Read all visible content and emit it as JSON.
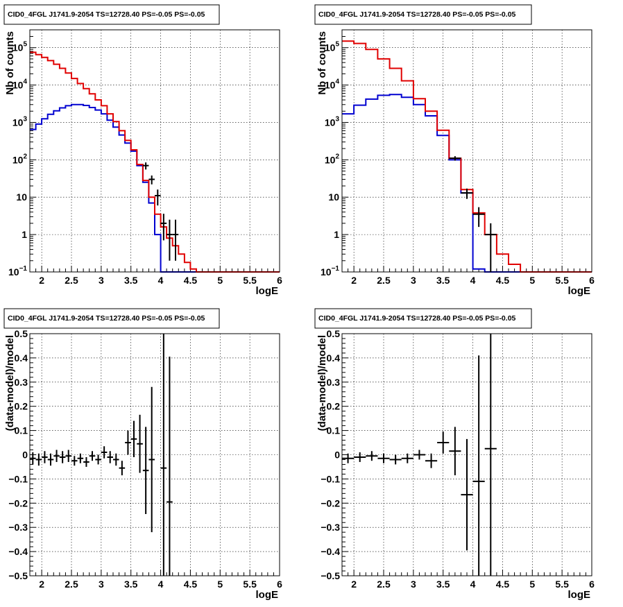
{
  "panel_title": "CID0_4FGL J1741.9-2054 TS=12728.40 PS=-0.05 PS=-0.05",
  "colors": {
    "data": "#000000",
    "model_total": "#e00000",
    "model_source": "#0000d0"
  },
  "chart_data": [
    {
      "type": "line",
      "title": "CID0_4FGL J1741.9-2054 TS=12728.40 PS=-0.05 PS=-0.05",
      "xlabel": "logE",
      "ylabel": "Nb of counts",
      "xlim": [
        1.8,
        6.0
      ],
      "ylim": [
        0.1,
        300000
      ],
      "yscale": "log",
      "grid": true,
      "x_ticks": [
        "2",
        "2.5",
        "3",
        "3.5",
        "4",
        "4.5",
        "5",
        "5.5",
        "6"
      ],
      "y_ticks": [
        {
          "value": 0.1,
          "mantissa": "10",
          "exp": "−1"
        },
        {
          "value": 1,
          "mantissa": "1",
          "exp": ""
        },
        {
          "value": 10,
          "mantissa": "10",
          "exp": ""
        },
        {
          "value": 100,
          "mantissa": "10",
          "exp": "2"
        },
        {
          "value": 1000,
          "mantissa": "10",
          "exp": "3"
        },
        {
          "value": 10000,
          "mantissa": "10",
          "exp": "4"
        },
        {
          "value": 100000,
          "mantissa": "10",
          "exp": "5"
        }
      ],
      "bin_edges": [
        1.8,
        1.9,
        2.0,
        2.1,
        2.2,
        2.3,
        2.4,
        2.5,
        2.6,
        2.7,
        2.8,
        2.9,
        3.0,
        3.1,
        3.2,
        3.3,
        3.4,
        3.5,
        3.6,
        3.7,
        3.8,
        3.9,
        4.0,
        4.1,
        4.2,
        4.3,
        4.4,
        4.5,
        4.6,
        4.7,
        4.8,
        4.9,
        5.0,
        5.1,
        5.2,
        5.3,
        5.4,
        5.5,
        5.6,
        5.7,
        5.8,
        5.9,
        6.0
      ],
      "series": [
        {
          "role": "model_total",
          "values": [
            75000,
            65000,
            55000,
            45000,
            36000,
            28000,
            21000,
            15000,
            11000,
            8000,
            5800,
            4000,
            2800,
            1700,
            1050,
            600,
            330,
            185,
            75,
            28,
            10,
            3.5,
            1.6,
            0.8,
            0.5,
            0.3,
            0.18,
            0.12,
            0.1,
            0.1,
            0.1,
            0.1,
            0.1,
            0.1,
            0.1,
            0.1,
            0.1,
            0.1,
            0.1,
            0.1,
            0.1,
            0.1
          ]
        },
        {
          "role": "model_source",
          "values": [
            650,
            900,
            1250,
            1650,
            2050,
            2450,
            2800,
            3000,
            3000,
            2850,
            2500,
            2150,
            1700,
            1150,
            750,
            460,
            280,
            170,
            70,
            25,
            7,
            1,
            0.1,
            0.1,
            0.1,
            0.1,
            0.1,
            0.1,
            0.1,
            0.1,
            0.1,
            0.1,
            0.1,
            0.1,
            0.1,
            0.1,
            0.1,
            0.1,
            0.1,
            0.1,
            0.1,
            0.1
          ]
        }
      ],
      "data_points": [
        {
          "x": 3.75,
          "y": 70,
          "lo": 55,
          "hi": 85
        },
        {
          "x": 3.85,
          "y": 30,
          "lo": 22,
          "hi": 38
        },
        {
          "x": 3.95,
          "y": 11,
          "lo": 6,
          "hi": 16
        },
        {
          "x": 4.05,
          "y": 2,
          "lo": 0.7,
          "hi": 3.6
        },
        {
          "x": 4.15,
          "y": 1,
          "lo": 0.2,
          "hi": 2.5
        },
        {
          "x": 4.25,
          "y": 1,
          "lo": 0.2,
          "hi": 2.5
        }
      ]
    },
    {
      "type": "line",
      "title": "CID0_4FGL J1741.9-2054 TS=12728.40 PS=-0.05 PS=-0.05",
      "xlabel": "logE",
      "ylabel": "Nb of counts",
      "xlim": [
        1.8,
        6.0
      ],
      "ylim": [
        0.1,
        300000
      ],
      "yscale": "log",
      "grid": true,
      "x_ticks": [
        "2",
        "2.5",
        "3",
        "3.5",
        "4",
        "4.5",
        "5",
        "5.5",
        "6"
      ],
      "y_ticks": [
        {
          "value": 0.1,
          "mantissa": "10",
          "exp": "−1"
        },
        {
          "value": 1,
          "mantissa": "1",
          "exp": ""
        },
        {
          "value": 10,
          "mantissa": "10",
          "exp": ""
        },
        {
          "value": 100,
          "mantissa": "10",
          "exp": "2"
        },
        {
          "value": 1000,
          "mantissa": "10",
          "exp": "3"
        },
        {
          "value": 10000,
          "mantissa": "10",
          "exp": "4"
        },
        {
          "value": 100000,
          "mantissa": "10",
          "exp": "5"
        }
      ],
      "bin_edges": [
        1.8,
        2.0,
        2.2,
        2.4,
        2.6,
        2.8,
        3.0,
        3.2,
        3.4,
        3.6,
        3.8,
        4.0,
        4.2,
        4.4,
        4.6,
        4.8,
        5.0,
        5.2,
        5.4,
        5.6,
        5.8,
        6.0
      ],
      "series": [
        {
          "role": "model_total",
          "values": [
            150000,
            130000,
            90000,
            50000,
            28000,
            13000,
            4300,
            2000,
            620,
            110,
            16,
            3.8,
            1.0,
            0.3,
            0.16,
            0.1,
            0.1,
            0.1,
            0.1,
            0.1,
            0.1
          ]
        },
        {
          "role": "model_source",
          "values": [
            1700,
            2900,
            4200,
            5300,
            5600,
            4700,
            3000,
            1500,
            450,
            100,
            13,
            0.12,
            0.1,
            0.1,
            0.1,
            0.1,
            0.1,
            0.1,
            0.1,
            0.1,
            0.1
          ]
        }
      ],
      "data_points": [
        {
          "x": 3.7,
          "y": 110,
          "lo": 95,
          "hi": 125
        },
        {
          "x": 3.9,
          "y": 13,
          "lo": 9,
          "hi": 17
        },
        {
          "x": 4.1,
          "y": 3.5,
          "lo": 1.6,
          "hi": 5.4
        },
        {
          "x": 4.3,
          "y": 1,
          "lo": 0.1,
          "hi": 2.0
        }
      ]
    },
    {
      "type": "scatter",
      "title": "CID0_4FGL J1741.9-2054 TS=12728.40 PS=-0.05 PS=-0.05",
      "xlabel": "logE",
      "ylabel": "(data-model)/model",
      "xlim": [
        1.8,
        6.0
      ],
      "ylim": [
        -0.5,
        0.5
      ],
      "yscale": "linear",
      "grid": true,
      "x_ticks": [
        "2",
        "2.5",
        "3",
        "3.5",
        "4",
        "4.5",
        "5",
        "5.5",
        "6"
      ],
      "y_ticks": [
        "−0.5",
        "−0.4",
        "−0.3",
        "−0.2",
        "−0.1",
        "0",
        "0.1",
        "0.2",
        "0.3",
        "0.4",
        "0.5"
      ],
      "bin_width": 0.1,
      "points": [
        {
          "x": 1.85,
          "y": -0.015,
          "err": 0.025
        },
        {
          "x": 1.95,
          "y": -0.02,
          "err": 0.025
        },
        {
          "x": 2.05,
          "y": -0.01,
          "err": 0.025
        },
        {
          "x": 2.15,
          "y": -0.02,
          "err": 0.025
        },
        {
          "x": 2.25,
          "y": -0.005,
          "err": 0.025
        },
        {
          "x": 2.35,
          "y": -0.01,
          "err": 0.025
        },
        {
          "x": 2.45,
          "y": -0.005,
          "err": 0.025
        },
        {
          "x": 2.55,
          "y": -0.025,
          "err": 0.02
        },
        {
          "x": 2.65,
          "y": -0.015,
          "err": 0.02
        },
        {
          "x": 2.75,
          "y": -0.03,
          "err": 0.02
        },
        {
          "x": 2.85,
          "y": -0.005,
          "err": 0.02
        },
        {
          "x": 2.95,
          "y": -0.02,
          "err": 0.02
        },
        {
          "x": 3.05,
          "y": 0.01,
          "err": 0.025
        },
        {
          "x": 3.15,
          "y": -0.01,
          "err": 0.025
        },
        {
          "x": 3.25,
          "y": -0.02,
          "err": 0.025
        },
        {
          "x": 3.35,
          "y": -0.055,
          "err": 0.03
        },
        {
          "x": 3.45,
          "y": 0.05,
          "err": 0.05
        },
        {
          "x": 3.55,
          "y": 0.065,
          "err": 0.075
        },
        {
          "x": 3.65,
          "y": 0.045,
          "err": 0.12
        },
        {
          "x": 3.75,
          "y": -0.065,
          "err": 0.18
        },
        {
          "x": 3.85,
          "y": -0.02,
          "err": 0.3
        },
        {
          "x": 4.05,
          "y": -0.055,
          "err": 0.6
        },
        {
          "x": 4.15,
          "y": -0.195,
          "err": 0.6
        }
      ]
    },
    {
      "type": "scatter",
      "title": "CID0_4FGL J1741.9-2054 TS=12728.40 PS=-0.05 PS=-0.05",
      "xlabel": "logE",
      "ylabel": "(data-model)/model",
      "xlim": [
        1.8,
        6.0
      ],
      "ylim": [
        -0.5,
        0.5
      ],
      "yscale": "linear",
      "grid": true,
      "x_ticks": [
        "2",
        "2.5",
        "3",
        "3.5",
        "4",
        "4.5",
        "5",
        "5.5",
        "6"
      ],
      "y_ticks": [
        "−0.5",
        "−0.4",
        "−0.3",
        "−0.2",
        "−0.1",
        "0",
        "0.1",
        "0.2",
        "0.3",
        "0.4",
        "0.5"
      ],
      "bin_width": 0.2,
      "points": [
        {
          "x": 1.9,
          "y": -0.015,
          "err": 0.02
        },
        {
          "x": 2.1,
          "y": -0.01,
          "err": 0.02
        },
        {
          "x": 2.3,
          "y": -0.005,
          "err": 0.02
        },
        {
          "x": 2.5,
          "y": -0.015,
          "err": 0.02
        },
        {
          "x": 2.7,
          "y": -0.02,
          "err": 0.02
        },
        {
          "x": 2.9,
          "y": -0.015,
          "err": 0.02
        },
        {
          "x": 3.1,
          "y": 0.0,
          "err": 0.02
        },
        {
          "x": 3.3,
          "y": -0.025,
          "err": 0.03
        },
        {
          "x": 3.5,
          "y": 0.05,
          "err": 0.045
        },
        {
          "x": 3.7,
          "y": 0.015,
          "err": 0.1
        },
        {
          "x": 3.9,
          "y": -0.165,
          "err": 0.23
        },
        {
          "x": 4.1,
          "y": -0.11,
          "err": 0.52
        },
        {
          "x": 4.3,
          "y": 0.025,
          "err": 0.6
        }
      ]
    }
  ]
}
